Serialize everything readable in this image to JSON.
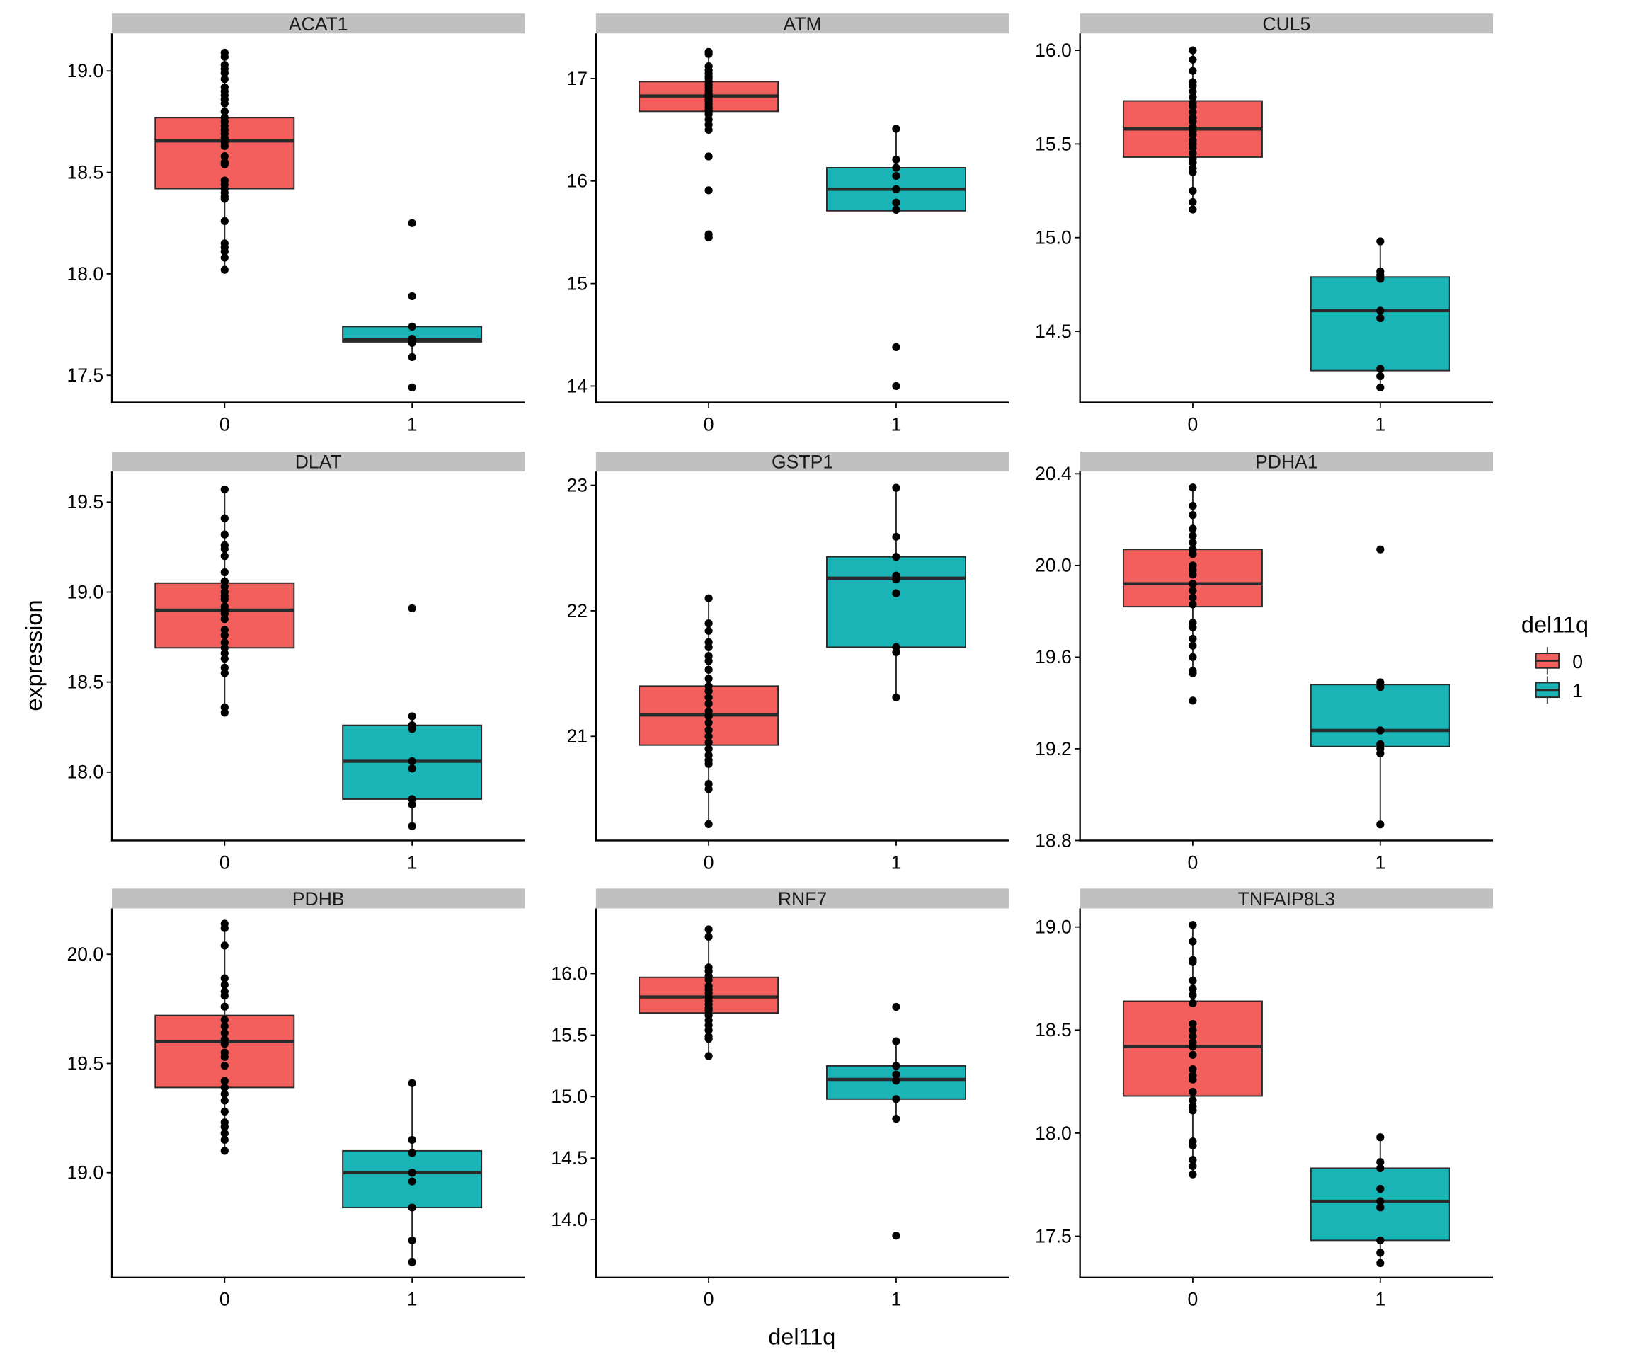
{
  "chart_data": {
    "type": "box",
    "xlabel": "del11q",
    "ylabel": "expression",
    "categories": [
      "0",
      "1"
    ],
    "legend": {
      "title": "del11q",
      "placement": "right",
      "entries": [
        {
          "label": "0",
          "color": "#F25F5C"
        },
        {
          "label": "1",
          "color": "#1AB3B6"
        }
      ]
    },
    "colors": {
      "group0": "#F25F5C",
      "group1": "#1AB3B6",
      "strip": "#C0C0C0",
      "box_line": "#2A2A2A",
      "point": "#000000"
    },
    "panels": [
      {
        "title": "ACAT1",
        "ylim": [
          17.366,
          19.185
        ],
        "yticks": [
          {
            "v": 17.5,
            "label": "17.5"
          },
          {
            "v": 18.0,
            "label": "18.0"
          },
          {
            "v": 18.5,
            "label": "18.5"
          },
          {
            "v": 19.0,
            "label": "19.0"
          }
        ],
        "groups": [
          {
            "category": "0",
            "q1": 18.42,
            "median": 18.655,
            "q3": 18.77,
            "whisker_low": 18.02,
            "whisker_high": 19.09,
            "points": [
              19.09,
              19.07,
              19.03,
              19.01,
              18.99,
              18.96,
              18.92,
              18.9,
              18.88,
              18.86,
              18.84,
              18.8,
              18.77,
              18.75,
              18.73,
              18.71,
              18.69,
              18.67,
              18.65,
              18.63,
              18.58,
              18.55,
              18.54,
              18.46,
              18.44,
              18.42,
              18.4,
              18.38,
              18.37,
              18.26,
              18.15,
              18.13,
              18.11,
              18.08,
              18.02
            ]
          },
          {
            "category": "1",
            "q1": 17.665,
            "median": 17.675,
            "q3": 17.74,
            "whisker_low": 17.59,
            "whisker_high": 17.74,
            "points": [
              18.25,
              17.89,
              17.74,
              17.68,
              17.66,
              17.59,
              17.44
            ]
          }
        ]
      },
      {
        "title": "ATM",
        "ylim": [
          13.84,
          17.44
        ],
        "yticks": [
          {
            "v": 14,
            "label": "14"
          },
          {
            "v": 15,
            "label": "15"
          },
          {
            "v": 16,
            "label": "16"
          },
          {
            "v": 17,
            "label": "17"
          }
        ],
        "groups": [
          {
            "category": "0",
            "q1": 16.68,
            "median": 16.83,
            "q3": 16.97,
            "whisker_low": 16.5,
            "whisker_high": 17.26,
            "points": [
              17.26,
              17.24,
              17.12,
              17.08,
              17.05,
              17.02,
              17.0,
              16.97,
              16.94,
              16.91,
              16.88,
              16.85,
              16.83,
              16.8,
              16.78,
              16.75,
              16.72,
              16.7,
              16.68,
              16.65,
              16.6,
              16.55,
              16.5,
              16.24,
              15.91,
              15.48,
              15.45
            ]
          },
          {
            "category": "1",
            "q1": 15.71,
            "median": 15.92,
            "q3": 16.13,
            "whisker_low": 15.71,
            "whisker_high": 16.51,
            "points": [
              16.51,
              16.21,
              16.13,
              16.05,
              15.92,
              15.79,
              15.72,
              14.38,
              14.0
            ]
          }
        ]
      },
      {
        "title": "CUL5",
        "ylim": [
          14.12,
          16.09
        ],
        "yticks": [
          {
            "v": 14.5,
            "label": "14.5"
          },
          {
            "v": 15.0,
            "label": "15.0"
          },
          {
            "v": 15.5,
            "label": "15.5"
          },
          {
            "v": 16.0,
            "label": "16.0"
          }
        ],
        "groups": [
          {
            "category": "0",
            "q1": 15.43,
            "median": 15.58,
            "q3": 15.73,
            "whisker_low": 15.15,
            "whisker_high": 16.0,
            "points": [
              16.0,
              15.95,
              15.89,
              15.83,
              15.81,
              15.78,
              15.75,
              15.72,
              15.7,
              15.67,
              15.64,
              15.62,
              15.59,
              15.57,
              15.55,
              15.52,
              15.5,
              15.48,
              15.45,
              15.42,
              15.4,
              15.37,
              15.35,
              15.25,
              15.19,
              15.15
            ]
          },
          {
            "category": "1",
            "q1": 14.29,
            "median": 14.61,
            "q3": 14.79,
            "whisker_low": 14.2,
            "whisker_high": 14.98,
            "points": [
              14.98,
              14.82,
              14.8,
              14.78,
              14.61,
              14.57,
              14.3,
              14.26,
              14.2
            ]
          }
        ]
      },
      {
        "title": "DLAT",
        "ylim": [
          17.62,
          19.67
        ],
        "yticks": [
          {
            "v": 18.0,
            "label": "18.0"
          },
          {
            "v": 18.5,
            "label": "18.5"
          },
          {
            "v": 19.0,
            "label": "19.0"
          },
          {
            "v": 19.5,
            "label": "19.5"
          }
        ],
        "groups": [
          {
            "category": "0",
            "q1": 18.69,
            "median": 18.9,
            "q3": 19.05,
            "whisker_low": 18.33,
            "whisker_high": 19.57,
            "points": [
              19.57,
              19.41,
              19.32,
              19.26,
              19.24,
              19.2,
              19.11,
              19.06,
              19.03,
              19.0,
              18.98,
              18.96,
              18.92,
              18.9,
              18.88,
              18.85,
              18.79,
              18.76,
              18.72,
              18.69,
              18.66,
              18.63,
              18.58,
              18.55,
              18.36,
              18.33
            ]
          },
          {
            "category": "1",
            "q1": 17.85,
            "median": 18.06,
            "q3": 18.26,
            "whisker_low": 17.7,
            "whisker_high": 18.31,
            "points": [
              18.91,
              18.31,
              18.26,
              18.24,
              18.06,
              18.02,
              17.85,
              17.82,
              17.7
            ]
          }
        ]
      },
      {
        "title": "GSTP1",
        "ylim": [
          20.17,
          23.11
        ],
        "yticks": [
          {
            "v": 21,
            "label": "21"
          },
          {
            "v": 22,
            "label": "22"
          },
          {
            "v": 23,
            "label": "23"
          }
        ],
        "groups": [
          {
            "category": "0",
            "q1": 20.93,
            "median": 21.17,
            "q3": 21.4,
            "whisker_low": 20.3,
            "whisker_high": 22.1,
            "points": [
              22.1,
              21.9,
              21.84,
              21.75,
              21.71,
              21.64,
              21.6,
              21.53,
              21.46,
              21.4,
              21.36,
              21.31,
              21.26,
              21.2,
              21.16,
              21.11,
              21.05,
              21.0,
              20.95,
              20.9,
              20.85,
              20.81,
              20.78,
              20.62,
              20.58,
              20.3
            ]
          },
          {
            "category": "1",
            "q1": 21.71,
            "median": 22.26,
            "q3": 22.43,
            "whisker_low": 21.31,
            "whisker_high": 22.98,
            "points": [
              22.98,
              22.59,
              22.43,
              22.28,
              22.25,
              22.14,
              21.71,
              21.67,
              21.31
            ]
          }
        ]
      },
      {
        "title": "PDHA1",
        "ylim": [
          18.8,
          20.41
        ],
        "yticks": [
          {
            "v": 18.8,
            "label": "18.8"
          },
          {
            "v": 19.2,
            "label": "19.2"
          },
          {
            "v": 19.6,
            "label": "19.6"
          },
          {
            "v": 20.0,
            "label": "20.0"
          },
          {
            "v": 20.4,
            "label": "20.4"
          }
        ],
        "groups": [
          {
            "category": "0",
            "q1": 19.82,
            "median": 19.92,
            "q3": 20.07,
            "whisker_low": 19.53,
            "whisker_high": 20.34,
            "points": [
              20.34,
              20.26,
              20.22,
              20.16,
              20.13,
              20.1,
              20.07,
              20.05,
              20.0,
              19.98,
              19.96,
              19.92,
              19.89,
              19.86,
              19.83,
              19.75,
              19.73,
              19.68,
              19.65,
              19.6,
              19.54,
              19.53,
              19.41
            ]
          },
          {
            "category": "1",
            "q1": 19.21,
            "median": 19.28,
            "q3": 19.48,
            "whisker_low": 18.87,
            "whisker_high": 19.48,
            "points": [
              20.07,
              19.49,
              19.47,
              19.28,
              19.22,
              19.2,
              19.18,
              18.87
            ]
          }
        ]
      },
      {
        "title": "PDHB",
        "ylim": [
          18.52,
          20.21
        ],
        "yticks": [
          {
            "v": 19.0,
            "label": "19.0"
          },
          {
            "v": 19.5,
            "label": "19.5"
          },
          {
            "v": 20.0,
            "label": "20.0"
          }
        ],
        "groups": [
          {
            "category": "0",
            "q1": 19.39,
            "median": 19.6,
            "q3": 19.72,
            "whisker_low": 19.1,
            "whisker_high": 20.14,
            "points": [
              20.14,
              20.12,
              20.04,
              19.89,
              19.86,
              19.83,
              19.81,
              19.76,
              19.7,
              19.67,
              19.64,
              19.61,
              19.59,
              19.55,
              19.53,
              19.49,
              19.42,
              19.39,
              19.36,
              19.33,
              19.28,
              19.23,
              19.21,
              19.18,
              19.15,
              19.1
            ]
          },
          {
            "category": "1",
            "q1": 18.84,
            "median": 19.0,
            "q3": 19.1,
            "whisker_low": 18.59,
            "whisker_high": 19.41,
            "points": [
              19.41,
              19.15,
              19.09,
              19.0,
              18.96,
              18.84,
              18.69,
              18.59
            ]
          }
        ]
      },
      {
        "title": "RNF7",
        "ylim": [
          13.53,
          16.53
        ],
        "yticks": [
          {
            "v": 14.0,
            "label": "14.0"
          },
          {
            "v": 14.5,
            "label": "14.5"
          },
          {
            "v": 15.0,
            "label": "15.0"
          },
          {
            "v": 15.5,
            "label": "15.5"
          },
          {
            "v": 16.0,
            "label": "16.0"
          }
        ],
        "groups": [
          {
            "category": "0",
            "q1": 15.68,
            "median": 15.81,
            "q3": 15.97,
            "whisker_low": 15.33,
            "whisker_high": 16.36,
            "points": [
              16.36,
              16.3,
              16.05,
              16.02,
              15.98,
              15.95,
              15.9,
              15.87,
              15.84,
              15.81,
              15.78,
              15.75,
              15.72,
              15.7,
              15.66,
              15.62,
              15.58,
              15.54,
              15.49,
              15.47,
              15.33
            ]
          },
          {
            "category": "1",
            "q1": 14.98,
            "median": 15.14,
            "q3": 15.25,
            "whisker_low": 14.82,
            "whisker_high": 15.45,
            "points": [
              15.73,
              15.45,
              15.25,
              15.18,
              15.13,
              14.98,
              14.82,
              13.87
            ]
          }
        ]
      },
      {
        "title": "TNFAIP8L3",
        "ylim": [
          17.3,
          19.09
        ],
        "yticks": [
          {
            "v": 17.5,
            "label": "17.5"
          },
          {
            "v": 18.0,
            "label": "18.0"
          },
          {
            "v": 18.5,
            "label": "18.5"
          },
          {
            "v": 19.0,
            "label": "19.0"
          }
        ],
        "groups": [
          {
            "category": "0",
            "q1": 18.18,
            "median": 18.42,
            "q3": 18.64,
            "whisker_low": 17.8,
            "whisker_high": 19.01,
            "points": [
              19.01,
              18.93,
              18.84,
              18.83,
              18.74,
              18.7,
              18.67,
              18.63,
              18.53,
              18.5,
              18.47,
              18.44,
              18.42,
              18.38,
              18.31,
              18.28,
              18.26,
              18.2,
              18.16,
              18.13,
              18.11,
              17.96,
              17.94,
              17.87,
              17.84,
              17.8
            ]
          },
          {
            "category": "1",
            "q1": 17.48,
            "median": 17.67,
            "q3": 17.83,
            "whisker_low": 17.37,
            "whisker_high": 17.98,
            "points": [
              17.98,
              17.86,
              17.83,
              17.73,
              17.67,
              17.64,
              17.48,
              17.42,
              17.37
            ]
          }
        ]
      }
    ]
  }
}
